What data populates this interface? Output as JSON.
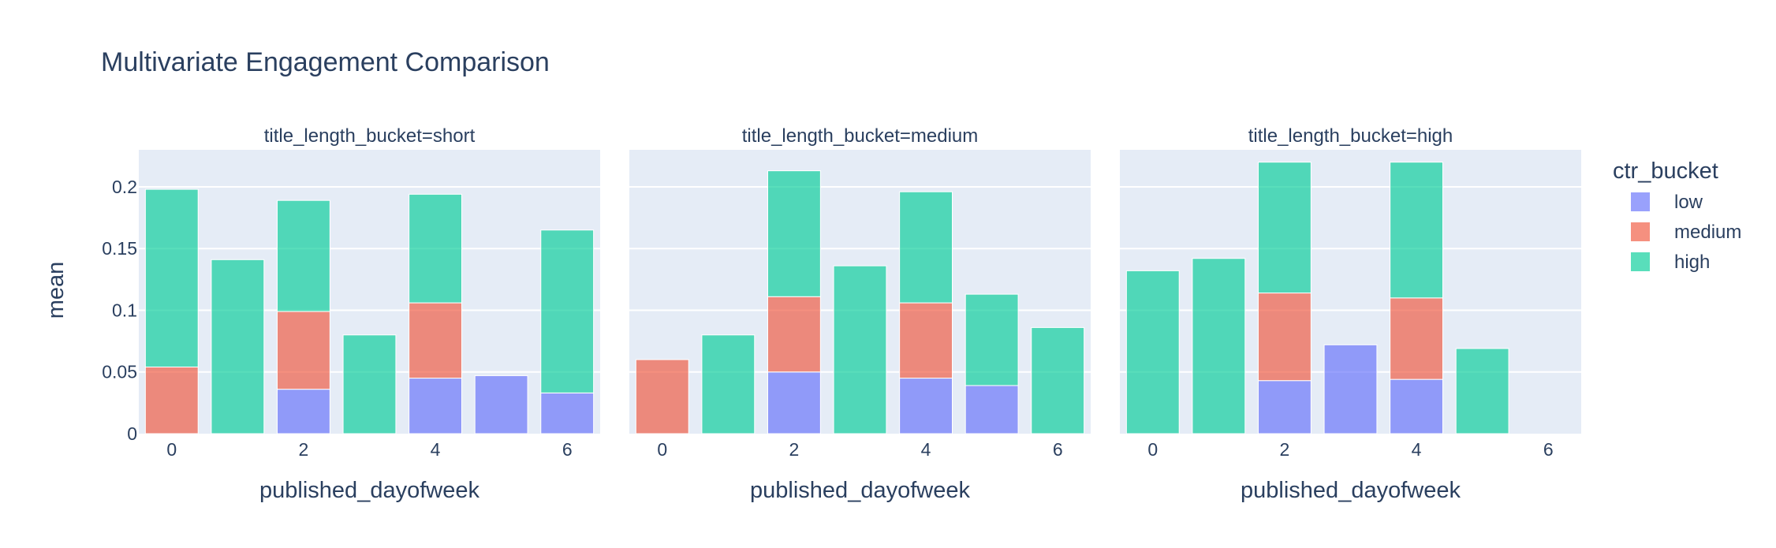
{
  "chart_data": {
    "type": "bar",
    "barmode": "stack",
    "title": "Multivariate Engagement Comparison",
    "ylabel": "mean",
    "xlabel": "published_dayofweek",
    "ylim": [
      0,
      0.23
    ],
    "xlim": [
      -0.5,
      6.5
    ],
    "yticks": [
      0,
      0.05,
      0.1,
      0.15,
      0.2
    ],
    "ytick_labels": [
      "0",
      "0.05",
      "0.1",
      "0.15",
      "0.2"
    ],
    "xticks": [
      0,
      2,
      4,
      6
    ],
    "xtick_labels": [
      "0",
      "2",
      "4",
      "6"
    ],
    "grid": true,
    "legend_title": "ctr_bucket",
    "legend_position": "right",
    "colors": {
      "low": "#636efa",
      "medium": "#ef553b",
      "high": "#00cc96"
    },
    "bar_opacity": 0.65,
    "facets": [
      {
        "title": "title_length_bucket=short",
        "series": [
          {
            "name": "low",
            "x": [
              2,
              4,
              5,
              6
            ],
            "values": [
              0.036,
              0.045,
              0.047,
              0.033
            ]
          },
          {
            "name": "medium",
            "x": [
              0,
              2,
              4
            ],
            "values": [
              0.054,
              0.063,
              0.061
            ]
          },
          {
            "name": "high",
            "x": [
              0,
              1,
              2,
              3,
              4,
              6
            ],
            "values": [
              0.144,
              0.141,
              0.09,
              0.08,
              0.088,
              0.132
            ]
          }
        ]
      },
      {
        "title": "title_length_bucket=medium",
        "series": [
          {
            "name": "low",
            "x": [
              2,
              4,
              5
            ],
            "values": [
              0.05,
              0.045,
              0.039
            ]
          },
          {
            "name": "medium",
            "x": [
              0,
              2,
              4
            ],
            "values": [
              0.06,
              0.061,
              0.061
            ]
          },
          {
            "name": "high",
            "x": [
              1,
              2,
              3,
              4,
              5,
              6
            ],
            "values": [
              0.08,
              0.102,
              0.136,
              0.09,
              0.074,
              0.086
            ]
          }
        ]
      },
      {
        "title": "title_length_bucket=high",
        "series": [
          {
            "name": "low",
            "x": [
              2,
              3,
              4
            ],
            "values": [
              0.043,
              0.072,
              0.044
            ]
          },
          {
            "name": "medium",
            "x": [
              2,
              4
            ],
            "values": [
              0.071,
              0.066
            ]
          },
          {
            "name": "high",
            "x": [
              0,
              1,
              2,
              4,
              5
            ],
            "values": [
              0.132,
              0.142,
              0.106,
              0.11,
              0.069
            ]
          }
        ]
      }
    ]
  }
}
